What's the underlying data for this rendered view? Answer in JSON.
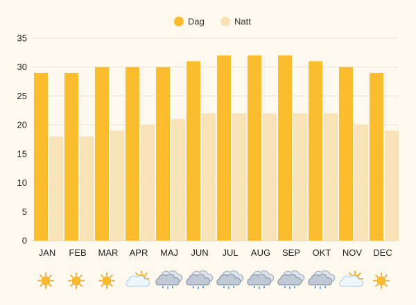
{
  "chart_data": {
    "type": "bar",
    "categories": [
      "JAN",
      "FEB",
      "MAR",
      "APR",
      "MAJ",
      "JUN",
      "JUL",
      "AUG",
      "SEP",
      "OKT",
      "NOV",
      "DEC"
    ],
    "series": [
      {
        "name": "Dag",
        "color": "#fbbd2e",
        "values": [
          29,
          29,
          30,
          30,
          30,
          31,
          32,
          32,
          32,
          31,
          30,
          29
        ]
      },
      {
        "name": "Natt",
        "color": "#f8e3b8",
        "values": [
          18,
          18,
          19,
          20,
          21,
          22,
          22,
          22,
          22,
          22,
          20,
          19
        ]
      }
    ],
    "yticks": [
      0,
      5,
      10,
      15,
      20,
      25,
      30,
      35
    ],
    "ylim": [
      0,
      35
    ],
    "grid": true,
    "legend": "top-center",
    "weather_icons": [
      "sun-icon",
      "sun-icon",
      "sun-icon",
      "partly-cloudy-icon",
      "rain-cloud-icon",
      "rain-cloud-icon",
      "rain-cloud-icon",
      "rain-cloud-icon",
      "rain-cloud-icon",
      "rain-cloud-icon",
      "partly-cloudy-icon",
      "sun-icon"
    ]
  }
}
